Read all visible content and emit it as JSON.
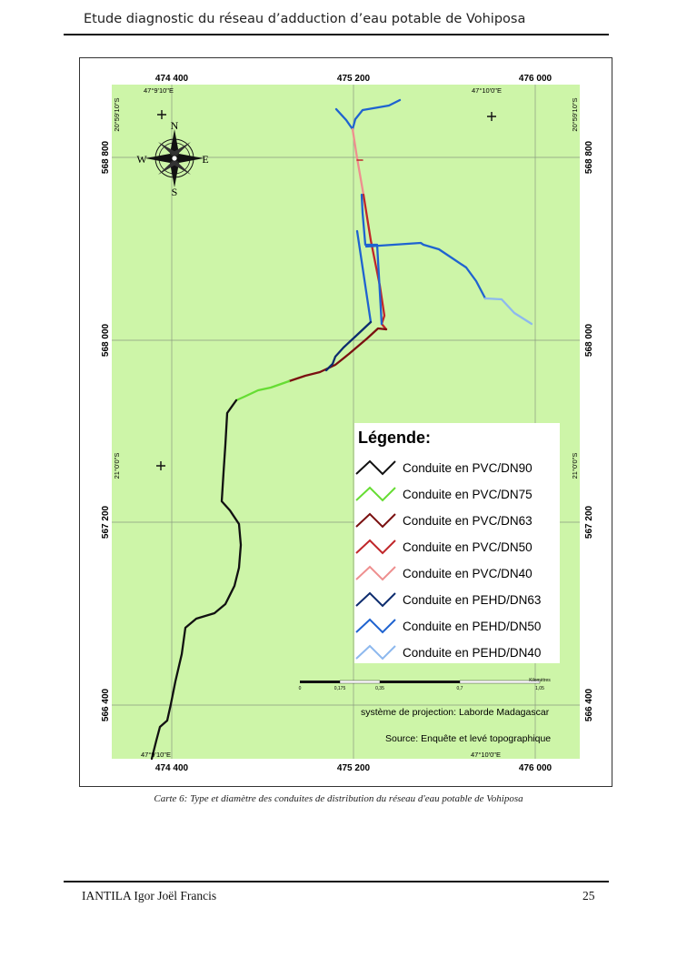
{
  "header": {
    "title": "Etude diagnostic du réseau d’adduction d’eau potable de Vohiposa"
  },
  "map": {
    "x_ticks_top": [
      "474 400",
      "475 200",
      "476 000"
    ],
    "x_ticks_bottom": [
      "474 400",
      "475 200",
      "476 000"
    ],
    "y_ticks_left": [
      "568 800",
      "568 000",
      "567 200",
      "566 400"
    ],
    "y_ticks_right": [
      "568 800",
      "568 000",
      "567 200",
      "566 400"
    ],
    "lon_top": [
      "47°9'10\"E",
      "47°10'0\"E"
    ],
    "lon_bottom": [
      "47°9'10\"E",
      "47°10'0\"E"
    ],
    "lat_left": [
      "20°59'10\"S",
      "21°0'0\"S"
    ],
    "lat_right": [
      "20°59'10\"S",
      "21°0'0\"S"
    ],
    "compass": {
      "n": "N",
      "s": "S",
      "e": "E",
      "w": "W"
    },
    "legend": {
      "title": "Légende:",
      "items": [
        {
          "label": "Conduite en PVC/DN90",
          "color": "#111111"
        },
        {
          "label": "Conduite en PVC/DN75",
          "color": "#66dd33"
        },
        {
          "label": "Conduite en PVC/DN63",
          "color": "#7a1010"
        },
        {
          "label": "Conduite en PVC/DN50",
          "color": "#c0262a"
        },
        {
          "label": "Conduite en PVC/DN40",
          "color": "#ee8f8f"
        },
        {
          "label": "Conduite en PEHD/DN63",
          "color": "#0d2c6e"
        },
        {
          "label": "Conduite en PEHD/DN50",
          "color": "#1f63d0"
        },
        {
          "label": "Conduite en PEHD/DN40",
          "color": "#8db8ee"
        }
      ]
    },
    "scale_bar": {
      "ticks": [
        "0",
        "0,175",
        "0,35",
        "0,7",
        "1,05"
      ],
      "unit": "Kilomètres"
    },
    "projection": "système de projection: Laborde Madagascar",
    "source": "Source: Enquête et levé topographique",
    "colors": {
      "background": "#cdf5a8",
      "grid": "#8a9a80"
    }
  },
  "caption": "Carte 6: Type et diamètre des conduites de distribution du réseau d'eau potable de Vohiposa",
  "footer": {
    "author": "IANTILA Igor Joël Francis",
    "page": "25"
  }
}
